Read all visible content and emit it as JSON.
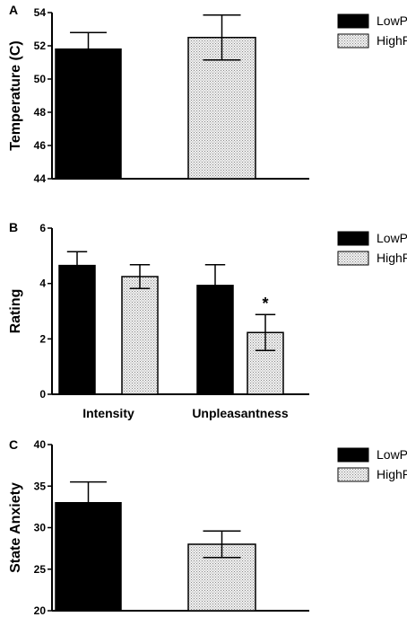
{
  "colors": {
    "low": "#000000",
    "high": "#d8d8d8",
    "high_pattern": "dotted-gray"
  },
  "chart_data": [
    {
      "type": "bar",
      "panel": "A",
      "ylabel": "Temperature (C)",
      "ylim": [
        44,
        54
      ],
      "yticks": [
        44,
        46,
        48,
        50,
        52,
        54
      ],
      "categories": [
        ""
      ],
      "series": [
        {
          "name": "LowP",
          "values": [
            51.8
          ],
          "errors": [
            1.0
          ]
        },
        {
          "name": "HighP",
          "values": [
            52.5
          ],
          "errors": [
            1.35
          ]
        }
      ],
      "annotations": []
    },
    {
      "type": "bar",
      "panel": "B",
      "ylabel": "Rating",
      "ylim": [
        0,
        6
      ],
      "yticks": [
        0,
        2,
        4,
        6
      ],
      "categories": [
        "Intensity",
        "Unpleasantness"
      ],
      "series": [
        {
          "name": "LowP",
          "values": [
            4.65,
            3.93
          ],
          "errors": [
            0.5,
            0.75
          ]
        },
        {
          "name": "HighP",
          "values": [
            4.25,
            2.23
          ],
          "errors": [
            0.43,
            0.65
          ]
        }
      ],
      "annotations": [
        {
          "text": "*",
          "series": 1,
          "category": 1
        }
      ]
    },
    {
      "type": "bar",
      "panel": "C",
      "ylabel": "State Anxiety",
      "ylim": [
        20,
        40
      ],
      "yticks": [
        20,
        25,
        30,
        35,
        40
      ],
      "categories": [
        ""
      ],
      "series": [
        {
          "name": "LowP",
          "values": [
            33.0
          ],
          "errors": [
            2.5
          ]
        },
        {
          "name": "HighP",
          "values": [
            28.0
          ],
          "errors": [
            1.6
          ]
        }
      ],
      "annotations": []
    }
  ]
}
